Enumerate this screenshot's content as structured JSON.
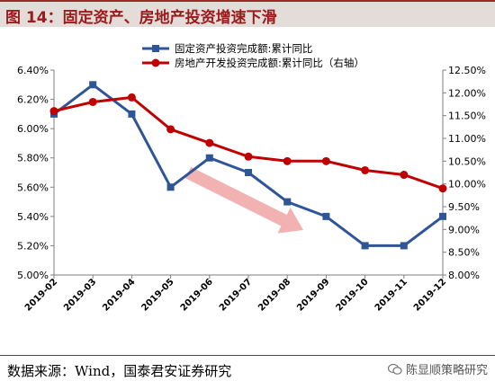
{
  "figure": {
    "title": "图 14：固定资产、房地产投资增速下滑",
    "source": "数据来源：Wind，国泰君安证券研究",
    "watermark": "陈显顺策略研究"
  },
  "chart_data": {
    "type": "line",
    "categories": [
      "2019-02",
      "2019-03",
      "2019-04",
      "2019-05",
      "2019-06",
      "2019-07",
      "2019-08",
      "2019-09",
      "2019-10",
      "2019-11",
      "2019-12"
    ],
    "series": [
      {
        "name": "固定资产投资完成额:累计同比",
        "axis": "left",
        "color": "#2e5597",
        "marker": "square",
        "values": [
          6.1,
          6.3,
          6.1,
          5.6,
          5.8,
          5.7,
          5.5,
          5.4,
          5.2,
          5.2,
          5.4
        ]
      },
      {
        "name": "房地产开发投资完成额:累计同比（右轴）",
        "axis": "right",
        "color": "#c00000",
        "marker": "circle",
        "values": [
          11.6,
          11.8,
          11.9,
          11.2,
          10.9,
          10.6,
          10.5,
          10.5,
          10.3,
          10.2,
          9.9
        ]
      }
    ],
    "y_left": {
      "min": 5.0,
      "max": 6.4,
      "step": 0.2,
      "ticks": [
        "5.00%",
        "5.20%",
        "5.40%",
        "5.60%",
        "5.80%",
        "6.00%",
        "6.20%",
        "6.40%"
      ]
    },
    "y_right": {
      "min": 8.0,
      "max": 12.5,
      "step": 0.5,
      "ticks": [
        "8.00%",
        "8.50%",
        "9.00%",
        "9.50%",
        "10.00%",
        "10.50%",
        "11.00%",
        "11.50%",
        "12.00%",
        "12.50%"
      ]
    },
    "grid": false,
    "legend": "top-center",
    "annotation": {
      "type": "arrow",
      "direction": "down-right",
      "color": "#f2aaaa"
    }
  }
}
